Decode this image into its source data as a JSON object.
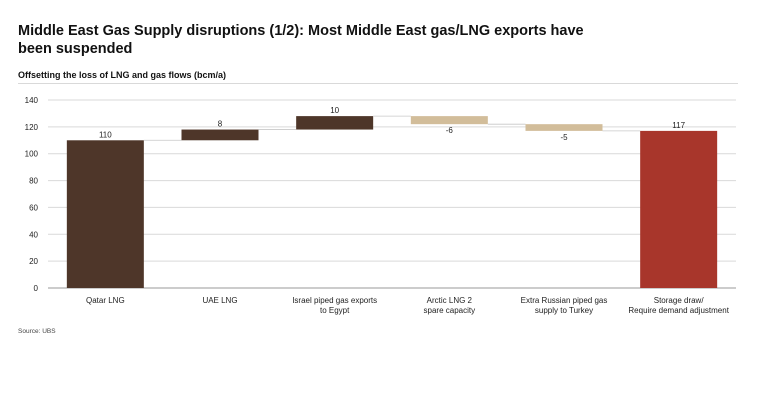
{
  "title": "Middle East Gas Supply disruptions (1/2): Most Middle East gas/LNG exports have been suspended",
  "source": "Source: UBS",
  "colors": {
    "dark_brown": "#4e3629",
    "beige": "#d2bd9a",
    "red": "#a8362b",
    "grid": "#d9d9d9"
  },
  "chart_data": {
    "type": "waterfall",
    "title": "Offsetting the loss of LNG and gas flows (bcm/a)",
    "ylim": [
      0,
      140
    ],
    "yticks": [
      0,
      20,
      40,
      60,
      80,
      100,
      120,
      140
    ],
    "grid": true,
    "categories": [
      [
        "Qatar LNG"
      ],
      [
        "UAE LNG"
      ],
      [
        "Israel piped gas exports",
        "to Egypt"
      ],
      [
        "Arctic LNG 2",
        "spare capacity"
      ],
      [
        "Extra Russian piped gas",
        "supply  to Turkey"
      ],
      [
        "Storage draw/",
        "Require demand adjustment"
      ]
    ],
    "bars": [
      {
        "label": "110",
        "start": 0,
        "end": 110,
        "kind": "total"
      },
      {
        "label": "8",
        "start": 110,
        "end": 118,
        "kind": "increase"
      },
      {
        "label": "10",
        "start": 118,
        "end": 128,
        "kind": "increase"
      },
      {
        "label": "-6",
        "start": 128,
        "end": 122,
        "kind": "decrease"
      },
      {
        "label": "-5",
        "start": 122,
        "end": 117,
        "kind": "decrease"
      },
      {
        "label": "117",
        "start": 0,
        "end": 117,
        "kind": "result"
      }
    ]
  }
}
